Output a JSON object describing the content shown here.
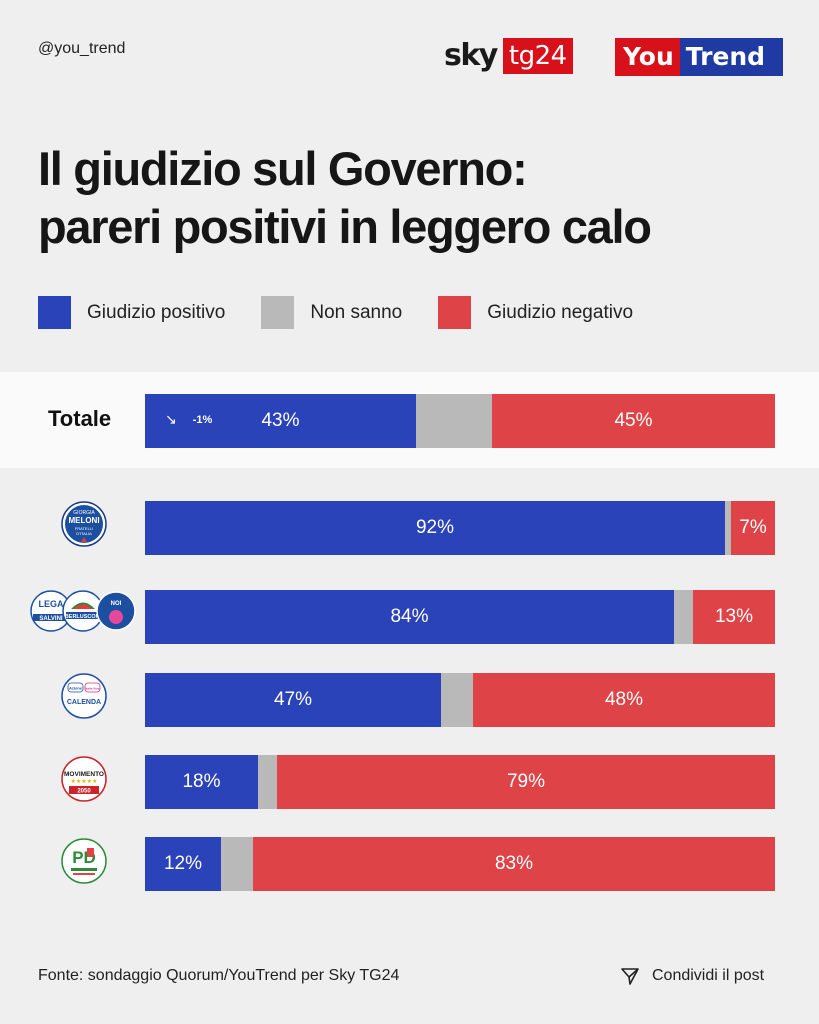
{
  "header": {
    "handle": "@you_trend",
    "sky_logo": {
      "sky": "sky",
      "tg": "tg24"
    },
    "yt_logo": {
      "you": "You",
      "trend": "Trend"
    }
  },
  "title": {
    "line1": [
      {
        "text": "Il ",
        "bold": false
      },
      {
        "text": "giudizio sul Governo",
        "bold": true
      },
      {
        "text": ":",
        "bold": false
      }
    ],
    "line2": [
      {
        "text": "pareri positivi in ",
        "bold": false
      },
      {
        "text": "leggero calo",
        "bold": true
      }
    ]
  },
  "colors": {
    "positive": "#2b43b8",
    "unknown": "#b9b9b9",
    "negative": "#de4347"
  },
  "chart_data": {
    "type": "bar",
    "orientation": "horizontal",
    "stacked": true,
    "normalized": true,
    "title": "Il giudizio sul Governo: pareri positivi in leggero calo",
    "legend": [
      "Giudizio positivo",
      "Non sanno",
      "Giudizio negativo"
    ],
    "legend_position": "top-left",
    "categories": [
      "Totale",
      "Fratelli d'Italia",
      "Lega / Forza Italia / Noi Moderati",
      "Azione / Italia Viva",
      "Movimento 5 Stelle",
      "Partito Democratico"
    ],
    "series": [
      {
        "name": "Giudizio positivo",
        "values": [
          43,
          92,
          84,
          47,
          18,
          12
        ],
        "labels": [
          "43%",
          "92%",
          "84%",
          "47%",
          "18%",
          "12%"
        ]
      },
      {
        "name": "Non sanno",
        "values": [
          12,
          1,
          3,
          5,
          3,
          5
        ],
        "labels": [
          "",
          "",
          "",
          "",
          "",
          ""
        ]
      },
      {
        "name": "Giudizio negativo",
        "values": [
          45,
          7,
          13,
          48,
          79,
          83
        ],
        "labels": [
          "45%",
          "7%",
          "13%",
          "48%",
          "79%",
          "83%"
        ]
      }
    ],
    "annotations": [
      {
        "category": "Totale",
        "text": "-1%",
        "direction": "down"
      }
    ]
  },
  "party_logos": {
    "fdi": {
      "top": "GIORGIA",
      "main": "MELONI",
      "sub1": "FRATELLI",
      "sub2": "D'ITALIA"
    },
    "lega": "LEGA",
    "salvini": "SALVINI",
    "fi": "BERLUSCONI",
    "nm": "NOI",
    "azione": "Azione",
    "iv": "Italia Viva",
    "calenda": "CALENDA",
    "m5s": "MOVIMENTO",
    "m5s_year": "2050",
    "pd": "PD"
  },
  "footer": {
    "source": "Fonte: sondaggio Quorum/YouTrend per Sky TG24",
    "share": "Condividi il post"
  }
}
